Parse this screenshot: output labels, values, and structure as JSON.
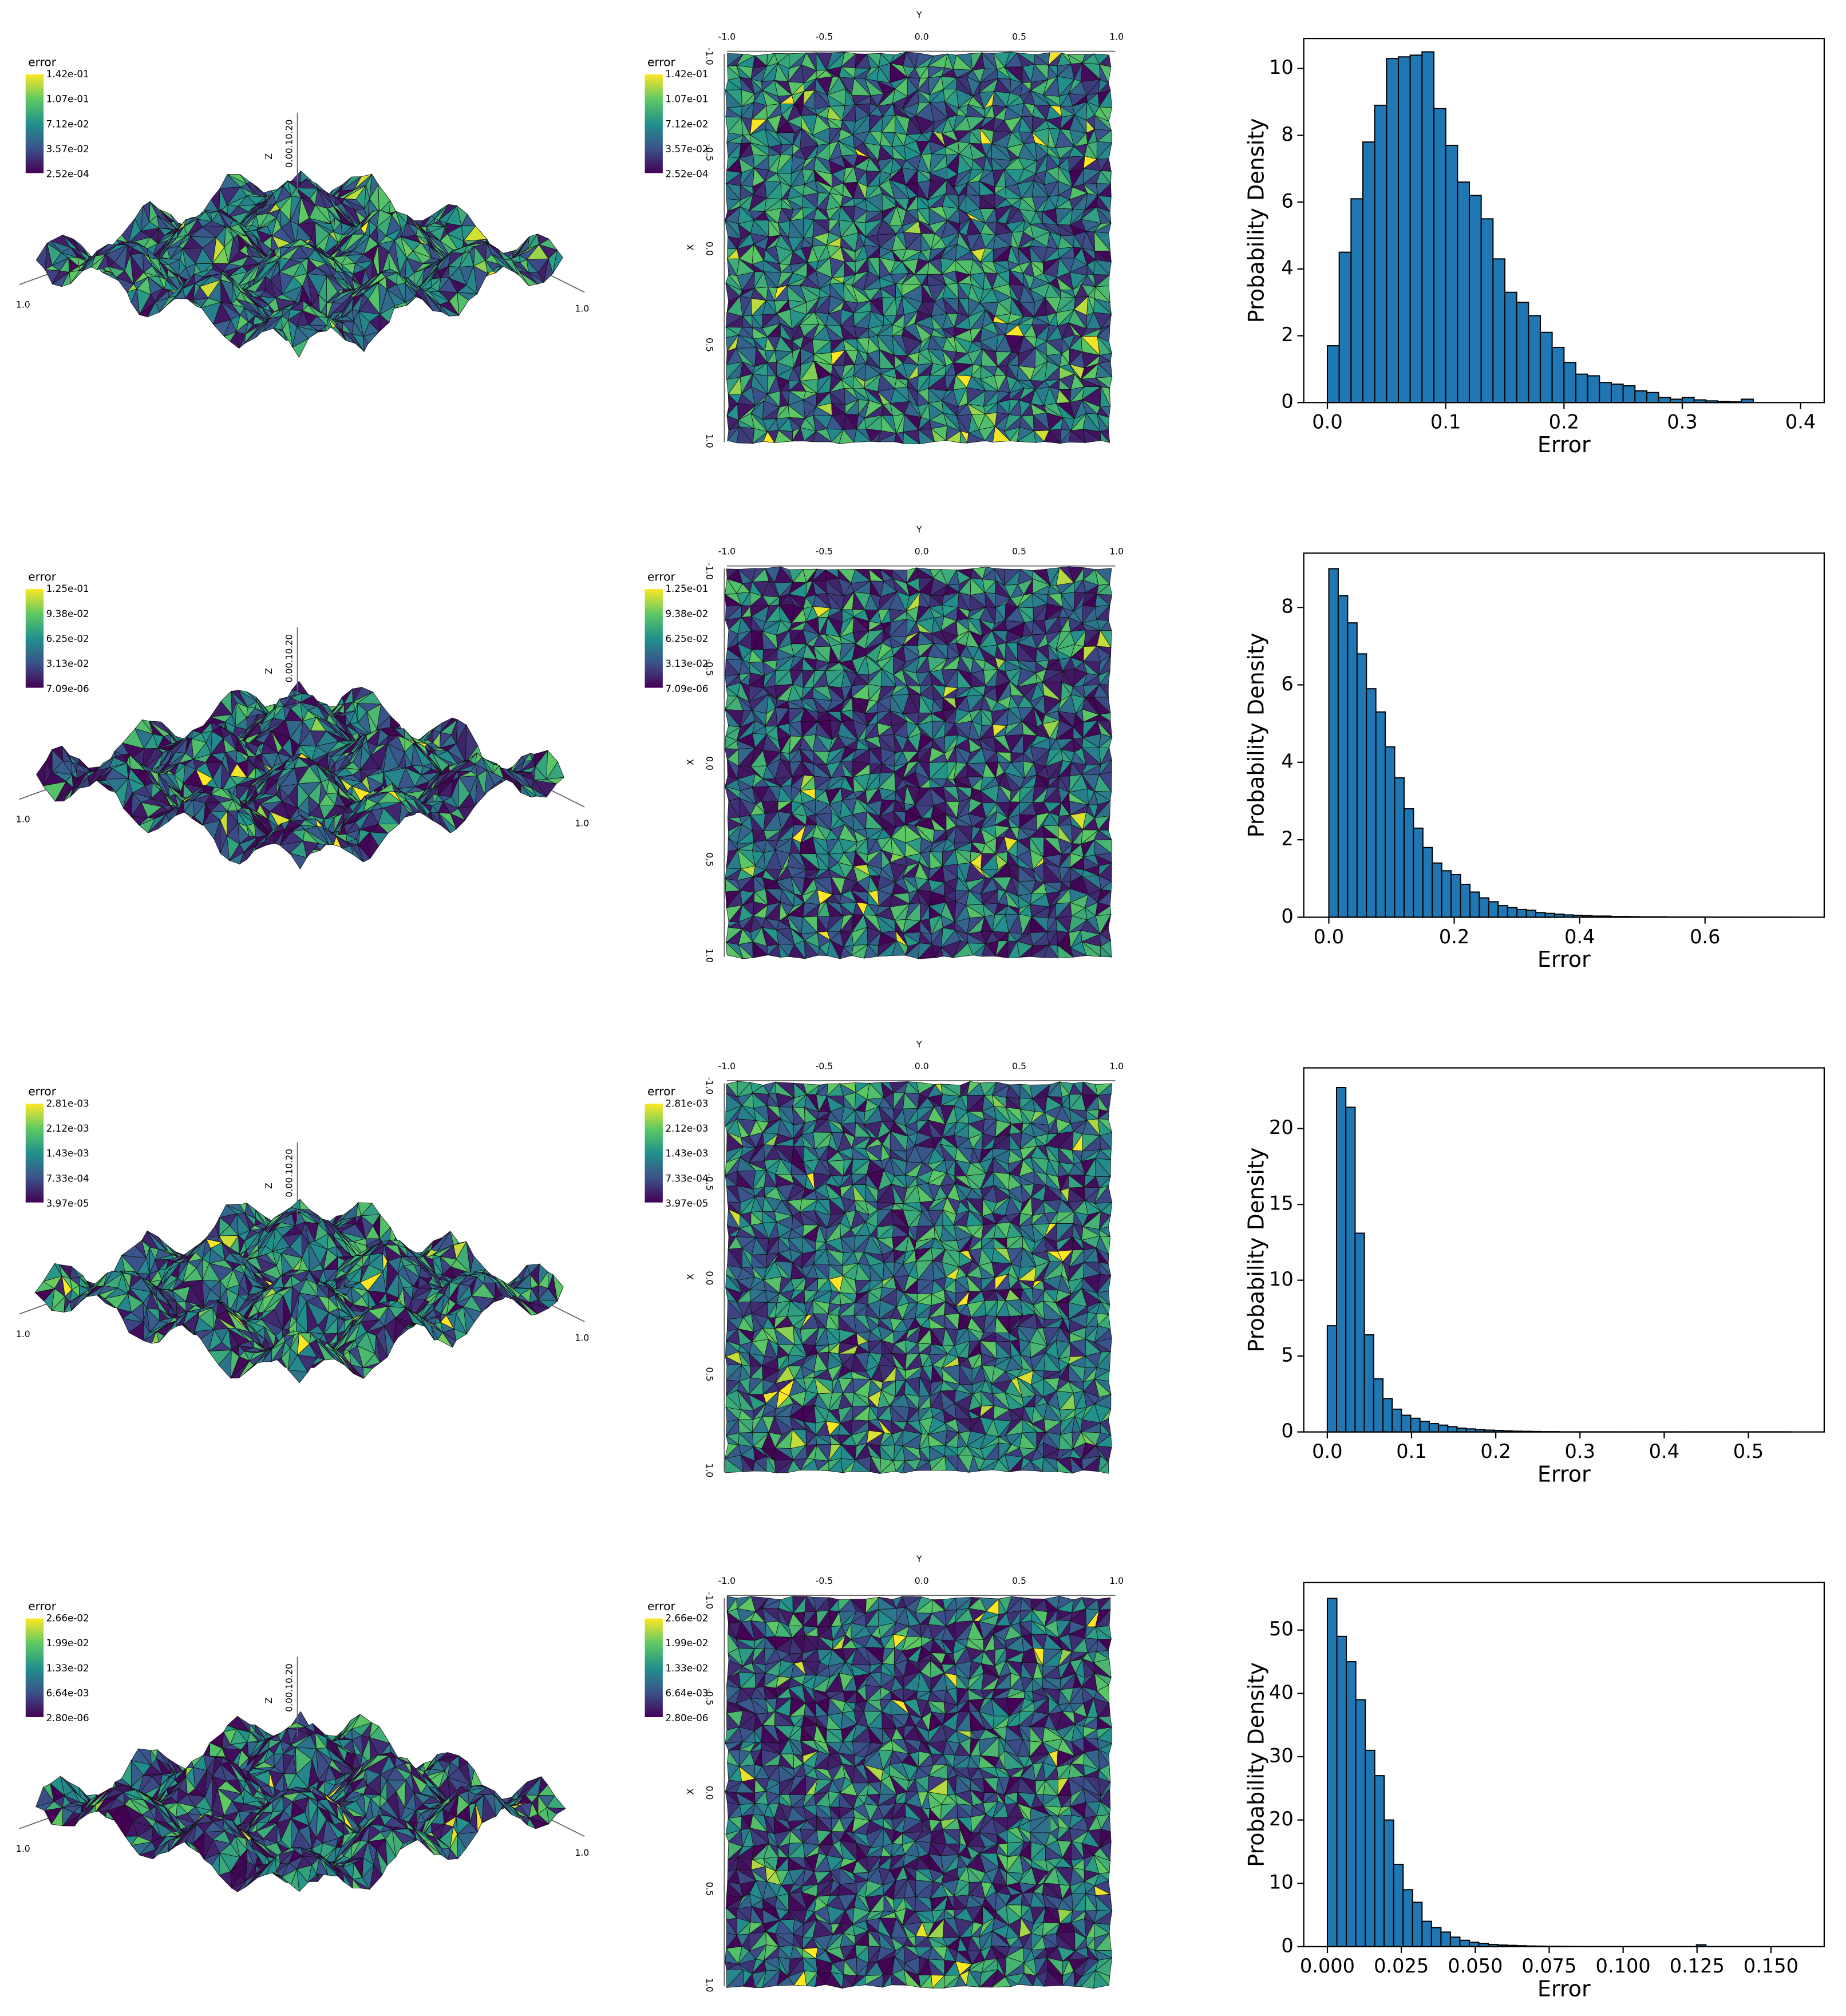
{
  "chart_data": [
    {
      "type": "histogram",
      "xlabel": "Error",
      "ylabel": "Probability Density",
      "color": "#1f77b4",
      "bins": [
        0,
        0.01,
        0.02,
        0.03,
        0.04,
        0.05,
        0.06,
        0.07,
        0.08,
        0.09,
        0.1,
        0.11,
        0.12,
        0.13,
        0.14,
        0.15,
        0.16,
        0.17,
        0.18,
        0.19,
        0.2,
        0.21,
        0.22,
        0.23,
        0.24,
        0.25,
        0.26,
        0.27,
        0.28,
        0.29,
        0.3,
        0.31,
        0.32,
        0.33,
        0.34,
        0.35,
        0.36
      ],
      "values": [
        1.7,
        4.5,
        6.1,
        7.8,
        8.9,
        10.3,
        10.35,
        10.4,
        10.5,
        8.8,
        7.7,
        6.6,
        6.2,
        5.5,
        4.3,
        3.3,
        3.0,
        2.6,
        2.1,
        1.65,
        1.2,
        0.85,
        0.8,
        0.6,
        0.55,
        0.5,
        0.35,
        0.3,
        0.15,
        0.1,
        0.15,
        0.08,
        0.05,
        0.03,
        0.02,
        0.1
      ],
      "xlim": [
        -0.02,
        0.42
      ],
      "ylim": [
        0,
        10.9
      ],
      "xticks": [
        {
          "value": 0,
          "label": "0.0"
        },
        0.1,
        0.2,
        0.3,
        0.4
      ],
      "yticks": [
        0,
        2,
        4,
        6,
        8,
        10
      ]
    },
    {
      "type": "histogram",
      "xlabel": "Error",
      "ylabel": "Probability Density",
      "color": "#1f77b4",
      "bins": [
        0,
        0.015,
        0.03,
        0.045,
        0.06,
        0.075,
        0.09,
        0.105,
        0.12,
        0.135,
        0.15,
        0.165,
        0.18,
        0.195,
        0.21,
        0.225,
        0.24,
        0.255,
        0.27,
        0.285,
        0.3,
        0.315,
        0.33,
        0.345,
        0.36,
        0.375,
        0.39,
        0.405,
        0.42,
        0.435,
        0.45,
        0.465,
        0.48,
        0.495,
        0.51,
        0.525,
        0.54,
        0.555,
        0.57,
        0.585,
        0.6,
        0.615,
        0.63,
        0.645,
        0.66,
        0.675,
        0.69,
        0.705,
        0.72,
        0.735,
        0.75
      ],
      "values": [
        9.0,
        8.3,
        7.6,
        6.8,
        5.9,
        5.3,
        4.4,
        3.6,
        2.8,
        2.3,
        1.8,
        1.4,
        1.2,
        1.1,
        0.85,
        0.65,
        0.5,
        0.4,
        0.3,
        0.25,
        0.2,
        0.18,
        0.12,
        0.1,
        0.08,
        0.06,
        0.05,
        0.04,
        0.03,
        0.03,
        0.02,
        0.02,
        0.015,
        0.01,
        0.01,
        0.01,
        0.005,
        0.005,
        0.005,
        0.005,
        0.003,
        0.003,
        0.003,
        0.003,
        0.002,
        0.002,
        0.002,
        0.002,
        0.002,
        0.002
      ],
      "xlim": [
        -0.04,
        0.79
      ],
      "ylim": [
        0,
        9.4
      ],
      "xticks": [
        {
          "value": 0,
          "label": "0.0"
        },
        0.2,
        0.4,
        0.6
      ],
      "yticks": [
        0,
        2,
        4,
        6,
        8
      ]
    },
    {
      "type": "histogram",
      "xlabel": "Error",
      "ylabel": "Probability Density",
      "color": "#1f77b4",
      "bins": [
        0,
        0.011,
        0.022,
        0.033,
        0.044,
        0.055,
        0.066,
        0.077,
        0.088,
        0.099,
        0.11,
        0.121,
        0.132,
        0.143,
        0.154,
        0.165,
        0.176,
        0.187,
        0.198,
        0.209,
        0.22,
        0.231,
        0.242,
        0.253,
        0.264,
        0.275,
        0.286,
        0.297,
        0.308,
        0.319,
        0.33,
        0.341,
        0.352,
        0.363,
        0.374,
        0.385,
        0.396,
        0.407,
        0.418,
        0.429,
        0.44,
        0.451,
        0.462,
        0.473,
        0.484,
        0.495,
        0.506,
        0.517,
        0.528,
        0.539,
        0.55
      ],
      "values": [
        7.0,
        22.7,
        21.4,
        13.1,
        6.4,
        3.5,
        2.2,
        1.5,
        1.1,
        0.9,
        0.7,
        0.55,
        0.45,
        0.35,
        0.25,
        0.2,
        0.15,
        0.12,
        0.1,
        0.07,
        0.05,
        0.04,
        0.03,
        0.02,
        0.02,
        0.01,
        0.01,
        0.01,
        0.01,
        0.01,
        0.01,
        0.01,
        0.01,
        0.01,
        0.01,
        0.01,
        0.01,
        0.01,
        0.01,
        0.01,
        0.01,
        0.01,
        0.01,
        0.01,
        0.01,
        0.01,
        0.01,
        0.01,
        0.01,
        0.01
      ],
      "xlim": [
        -0.028,
        0.59
      ],
      "ylim": [
        0,
        24
      ],
      "xticks": [
        {
          "value": 0,
          "label": "0.0"
        },
        0.1,
        0.2,
        0.3,
        0.4,
        0.5
      ],
      "yticks": [
        0,
        5,
        10,
        15,
        20
      ]
    },
    {
      "type": "histogram",
      "xlabel": "Error",
      "ylabel": "Probability Density",
      "color": "#1f77b4",
      "bins": [
        0,
        0.0032,
        0.0064,
        0.0096,
        0.0128,
        0.016,
        0.0192,
        0.0224,
        0.0256,
        0.0288,
        0.032,
        0.0352,
        0.0384,
        0.0416,
        0.0448,
        0.048,
        0.0512,
        0.0544,
        0.0576,
        0.0608,
        0.064,
        0.0672,
        0.0704,
        0.0736,
        0.0768,
        0.08,
        0.0832,
        0.0864,
        0.0896,
        0.0928,
        0.096,
        0.0992,
        0.1024,
        0.1056,
        0.1088,
        0.112,
        0.1152,
        0.1184,
        0.1216,
        0.1248,
        0.128,
        0.1312,
        0.1344,
        0.1376,
        0.1408,
        0.144,
        0.1472,
        0.1504,
        0.1536,
        0.1568,
        0.16
      ],
      "values": [
        55,
        49,
        45,
        39,
        31,
        27,
        20,
        13,
        9,
        7,
        4,
        3,
        2.3,
        1.5,
        1.0,
        0.7,
        0.5,
        0.35,
        0.25,
        0.2,
        0.15,
        0.1,
        0.08,
        0.06,
        0.05,
        0.04,
        0.03,
        0.02,
        0.02,
        0.01,
        0.01,
        0.01,
        0.01,
        0.01,
        0.01,
        0.01,
        0.01,
        0.01,
        0.01,
        0.3,
        0.01,
        0.01,
        0.01,
        0.01,
        0.01,
        0.01,
        0.01,
        0.01,
        0.01,
        0.01
      ],
      "xlim": [
        -0.008,
        0.168
      ],
      "ylim": [
        0,
        57.5
      ],
      "xticks": [
        {
          "value": 0,
          "label": "0.000"
        },
        0.025,
        {
          "value": 0.05,
          "label": "0.050"
        },
        0.075,
        {
          "value": 0.1,
          "label": "0.100"
        },
        0.125,
        {
          "value": 0.15,
          "label": "0.150"
        }
      ],
      "yticks": [
        0,
        10,
        20,
        30,
        40,
        50
      ]
    }
  ],
  "mesh_panels": [
    {
      "surface": {
        "colorbar_title": "error",
        "colorbar_ticks": [
          "1.42e-01",
          "1.07e-01",
          "7.12e-02",
          "3.57e-02",
          "2.52e-04"
        ],
        "z_label": "Z",
        "z_ticks": "0.00.10.20",
        "left_end": "1.0",
        "right_end": "1.0"
      },
      "top_view": {
        "colorbar_title": "error",
        "colorbar_ticks": [
          "1.42e-01",
          "1.07e-01",
          "7.12e-02",
          "3.57e-02",
          "2.52e-04"
        ],
        "top_label": "Y",
        "top_ticks": [
          "-1.0",
          "-0.5",
          "0.0",
          "0.5",
          "1.0"
        ],
        "left_label": "X",
        "left_ticks": [
          "-1.0",
          "-0.5",
          "0.0",
          "0.5",
          "1.0"
        ]
      }
    },
    {
      "surface": {
        "colorbar_title": "error",
        "colorbar_ticks": [
          "1.25e-01",
          "9.38e-02",
          "6.25e-02",
          "3.13e-02",
          "7.09e-06"
        ],
        "z_label": "Z",
        "z_ticks": "0.00.10.20",
        "left_end": "1.0",
        "right_end": "1.0"
      },
      "top_view": {
        "colorbar_title": "error",
        "colorbar_ticks": [
          "1.25e-01",
          "9.38e-02",
          "6.25e-02",
          "3.13e-02",
          "7.09e-06"
        ],
        "top_label": "Y",
        "top_ticks": [
          "-1.0",
          "-0.5",
          "0.0",
          "0.5",
          "1.0"
        ],
        "left_label": "X",
        "left_ticks": [
          "-1.0",
          "-0.5",
          "0.0",
          "0.5",
          "1.0"
        ]
      }
    },
    {
      "surface": {
        "colorbar_title": "error",
        "colorbar_ticks": [
          "2.81e-03",
          "2.12e-03",
          "1.43e-03",
          "7.33e-04",
          "3.97e-05"
        ],
        "z_label": "Z",
        "z_ticks": "0.00.10.20",
        "left_end": "1.0",
        "right_end": "1.0"
      },
      "top_view": {
        "colorbar_title": "error",
        "colorbar_ticks": [
          "2.81e-03",
          "2.12e-03",
          "1.43e-03",
          "7.33e-04",
          "3.97e-05"
        ],
        "top_label": "Y",
        "top_ticks": [
          "-1.0",
          "-0.5",
          "0.0",
          "0.5",
          "1.0"
        ],
        "left_label": "X",
        "left_ticks": [
          "-1.0",
          "-0.5",
          "0.0",
          "0.5",
          "1.0"
        ]
      }
    },
    {
      "surface": {
        "colorbar_title": "error",
        "colorbar_ticks": [
          "2.66e-02",
          "1.99e-02",
          "1.33e-02",
          "6.64e-03",
          "2.80e-06"
        ],
        "z_label": "Z",
        "z_ticks": "0.00.10.20",
        "left_end": "1.0",
        "right_end": "1.0"
      },
      "top_view": {
        "colorbar_title": "error",
        "colorbar_ticks": [
          "2.66e-02",
          "1.99e-02",
          "1.33e-02",
          "6.64e-03",
          "2.80e-06"
        ],
        "top_label": "Y",
        "top_ticks": [
          "-1.0",
          "-0.5",
          "0.0",
          "0.5",
          "1.0"
        ],
        "left_label": "X",
        "left_ticks": [
          "-1.0",
          "-0.5",
          "0.0",
          "0.5",
          "1.0"
        ]
      }
    }
  ]
}
